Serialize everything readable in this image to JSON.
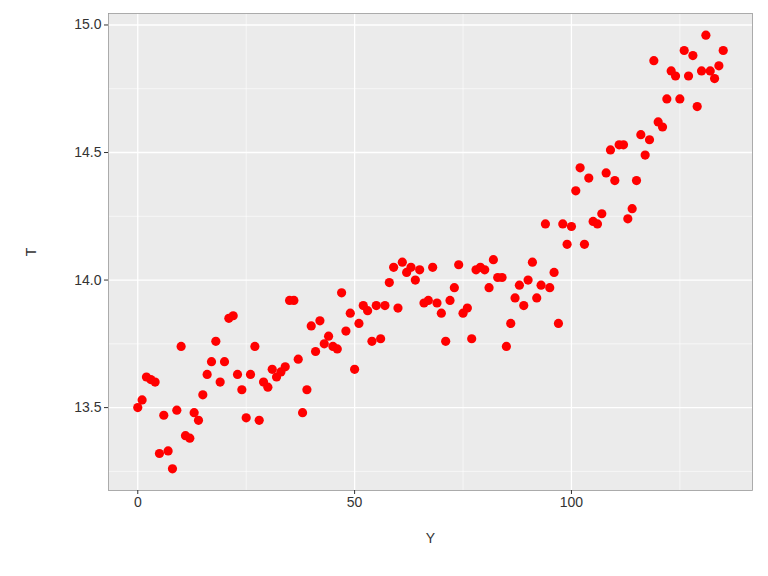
{
  "chart_data": {
    "type": "scatter",
    "x_label": "Y",
    "y_label": "T",
    "color": "#ff0000",
    "marker": "circle",
    "grid": true,
    "xlim": [
      -6.75,
      141.75
    ],
    "xticks": [
      0,
      50,
      100
    ],
    "ylim": [
      13.175,
      15.045
    ],
    "yticks": [
      13.5,
      {
        "value": 14,
        "label": "14.0"
      },
      14.5,
      {
        "value": 15,
        "label": "15.0"
      }
    ],
    "x": [
      0,
      1,
      2,
      3,
      4,
      5,
      6,
      7,
      8,
      9,
      10,
      11,
      12,
      13,
      14,
      15,
      16,
      17,
      18,
      19,
      20,
      21,
      22,
      23,
      24,
      25,
      26,
      27,
      28,
      29,
      30,
      31,
      32,
      33,
      34,
      35,
      36,
      37,
      38,
      39,
      40,
      41,
      42,
      43,
      44,
      45,
      46,
      47,
      48,
      49,
      50,
      51,
      52,
      53,
      54,
      55,
      56,
      57,
      58,
      59,
      60,
      61,
      62,
      63,
      64,
      65,
      66,
      67,
      68,
      69,
      70,
      71,
      72,
      73,
      74,
      75,
      76,
      77,
      78,
      79,
      80,
      81,
      82,
      83,
      84,
      85,
      86,
      87,
      88,
      89,
      90,
      91,
      92,
      93,
      94,
      95,
      96,
      97,
      98,
      99,
      100,
      101,
      102,
      103,
      104,
      105,
      106,
      107,
      108,
      109,
      110,
      111,
      112,
      113,
      114,
      115,
      116,
      117,
      118,
      119,
      120,
      121,
      122,
      123,
      124,
      125,
      126,
      127,
      128,
      129,
      130,
      131,
      132,
      133,
      134,
      135
    ],
    "values": [
      13.5,
      13.53,
      13.62,
      13.61,
      13.6,
      13.32,
      13.47,
      13.33,
      13.26,
      13.49,
      13.74,
      13.39,
      13.38,
      13.48,
      13.45,
      13.55,
      13.63,
      13.68,
      13.76,
      13.6,
      13.68,
      13.85,
      13.86,
      13.63,
      13.57,
      13.46,
      13.63,
      13.74,
      13.45,
      13.6,
      13.58,
      13.65,
      13.62,
      13.64,
      13.66,
      13.92,
      13.92,
      13.69,
      13.48,
      13.57,
      13.82,
      13.72,
      13.84,
      13.75,
      13.78,
      13.74,
      13.73,
      13.95,
      13.8,
      13.87,
      13.65,
      13.83,
      13.9,
      13.88,
      13.76,
      13.9,
      13.77,
      13.9,
      13.99,
      14.05,
      13.89,
      14.07,
      14.03,
      14.05,
      14.0,
      14.04,
      13.91,
      13.92,
      14.05,
      13.91,
      13.87,
      13.76,
      13.92,
      13.97,
      14.06,
      13.87,
      13.89,
      13.77,
      14.04,
      14.05,
      14.04,
      13.97,
      14.08,
      14.01,
      14.01,
      13.74,
      13.83,
      13.93,
      13.98,
      13.9,
      14.0,
      14.07,
      13.93,
      13.98,
      14.22,
      13.97,
      14.03,
      13.83,
      14.22,
      14.14,
      14.21,
      14.35,
      14.44,
      14.14,
      14.4,
      14.23,
      14.22,
      14.26,
      14.42,
      14.51,
      14.39,
      14.53,
      14.53,
      14.24,
      14.28,
      14.39,
      14.57,
      14.49,
      14.55,
      14.86,
      14.62,
      14.6,
      14.71,
      14.82,
      14.8,
      14.71,
      14.9,
      14.8,
      14.88,
      14.68,
      14.82,
      14.96,
      14.82,
      14.79,
      14.84,
      14.9
    ]
  }
}
